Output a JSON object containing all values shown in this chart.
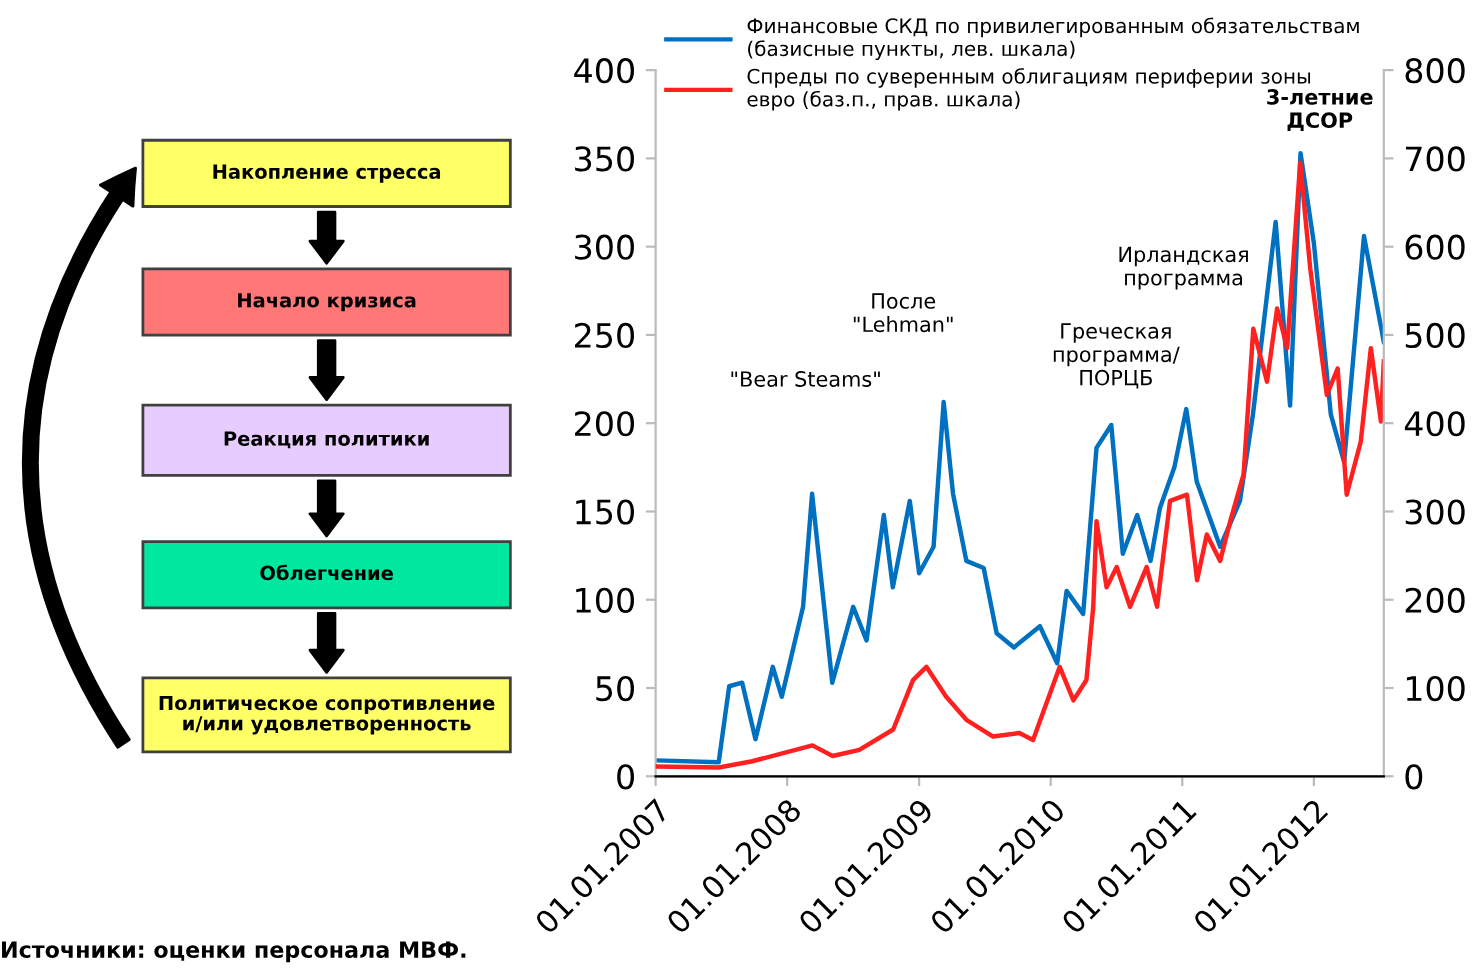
{
  "chart_data": [
    {
      "type": "other",
      "annotations": [
        "Накопление стресса",
        "Начало кризиса",
        "Реакция политики",
        "Облегчение",
        "Политическое сопротивление\nи/или удовлетворенность"
      ]
    },
    {
      "type": "line",
      "legend": "top",
      "grid": false,
      "line_style": "solid",
      "marker": "none",
      "xlim": [
        "2007-01-01",
        "2012-07-13"
      ],
      "xticks": [
        {
          "value": "2007-01-01",
          "label": "01.01.2007"
        },
        {
          "value": "2008-01-01",
          "label": "01.01.2008"
        },
        {
          "value": "2009-01-01",
          "label": "01.01.2009"
        },
        {
          "value": "2010-01-01",
          "label": "01.01.2010"
        },
        {
          "value": "2011-01-01",
          "label": "01.01.2011"
        },
        {
          "value": "2012-01-01",
          "label": "01.01.2012"
        }
      ],
      "ylim": [
        0,
        400
      ],
      "yticks": [
        0,
        50,
        100,
        150,
        200,
        250,
        300,
        350,
        400
      ],
      "y2lim": [
        0,
        800
      ],
      "y2ticks": [
        0,
        100,
        200,
        300,
        400,
        500,
        600,
        700,
        800
      ],
      "series": [
        {
          "name": "Финансовые СКД по привилегированным обязательствам\n(базисные пункты, лев. шкала)",
          "color": "#0070c0",
          "x": [
            "2007-01-01",
            "2007-06-25",
            "2007-07-24",
            "2007-08-29",
            "2007-10-05",
            "2007-11-22",
            "2007-12-17",
            "2008-02-14",
            "2008-03-10",
            "2008-05-05",
            "2008-07-02",
            "2008-08-08",
            "2008-09-25",
            "2008-10-20",
            "2008-12-06",
            "2009-01-01",
            "2009-02-10",
            "2009-03-10",
            "2009-04-05",
            "2009-05-12",
            "2009-06-29",
            "2009-08-04",
            "2009-09-21",
            "2009-12-02",
            "2010-01-19",
            "2010-02-14",
            "2010-04-01",
            "2010-05-08",
            "2010-06-18",
            "2010-07-20",
            "2010-08-29",
            "2010-10-05",
            "2010-10-31",
            "2010-12-10",
            "2011-01-12",
            "2011-02-10",
            "2011-04-16",
            "2011-06-10",
            "2011-07-16",
            "2011-09-17",
            "2011-10-27",
            "2011-11-25",
            "2012-01-01",
            "2012-02-17",
            "2012-03-25",
            "2012-05-19",
            "2012-07-13"
          ],
          "values": [
            9,
            8,
            51,
            53,
            21,
            62,
            45,
            96,
            160,
            53,
            96,
            77,
            148,
            107,
            156,
            115,
            130,
            212,
            160,
            122,
            118,
            81,
            73,
            85,
            64,
            105,
            92,
            186,
            199,
            126,
            148,
            122,
            152,
            175,
            208,
            167,
            130,
            156,
            205,
            314,
            210,
            353,
            302,
            205,
            178,
            306,
            246
          ]
        },
        {
          "name": "Спреды по суверенным облигациям периферии зоны\nевро (баз.п., прав. шкала)",
          "color": "#ff2020",
          "axis": "y2",
          "x": [
            "2007-01-01",
            "2007-06-25",
            "2007-09-26",
            "2008-03-11",
            "2008-05-06",
            "2008-07-19",
            "2008-10-21",
            "2008-12-15",
            "2009-01-21",
            "2009-03-17",
            "2009-05-12",
            "2009-07-25",
            "2009-10-06",
            "2009-11-13",
            "2010-01-26",
            "2010-03-05",
            "2010-04-10",
            "2010-04-29",
            "2010-05-08",
            "2010-06-05",
            "2010-07-03",
            "2010-08-09",
            "2010-09-24",
            "2010-10-23",
            "2010-11-28",
            "2011-01-14",
            "2011-02-11",
            "2011-03-10",
            "2011-04-16",
            "2011-05-14",
            "2011-06-20",
            "2011-07-17",
            "2011-08-24",
            "2011-09-21",
            "2011-10-19",
            "2011-11-24",
            "2011-12-22",
            "2012-02-06",
            "2012-03-07",
            "2012-04-01",
            "2012-05-10",
            "2012-06-07",
            "2012-07-05",
            "2012-07-13"
          ],
          "values": [
            11,
            10,
            17,
            35,
            23,
            30,
            53,
            109,
            124,
            90,
            64,
            45,
            49,
            41,
            124,
            86,
            109,
            192,
            289,
            214,
            237,
            192,
            237,
            192,
            312,
            319,
            222,
            274,
            244,
            289,
            342,
            507,
            447,
            530,
            485,
            695,
            575,
            432,
            462,
            319,
            379,
            485,
            402,
            470
          ]
        }
      ],
      "annotations": [
        "\"Bear Steams\"",
        "После\n\"Lehman\"",
        "Греческая\nпрограмма/\nПОРЦБ",
        "Ирландская\nпрограмма",
        "3-летние\nДСОР",
        "Источники: оценки персонала МВФ."
      ]
    }
  ]
}
